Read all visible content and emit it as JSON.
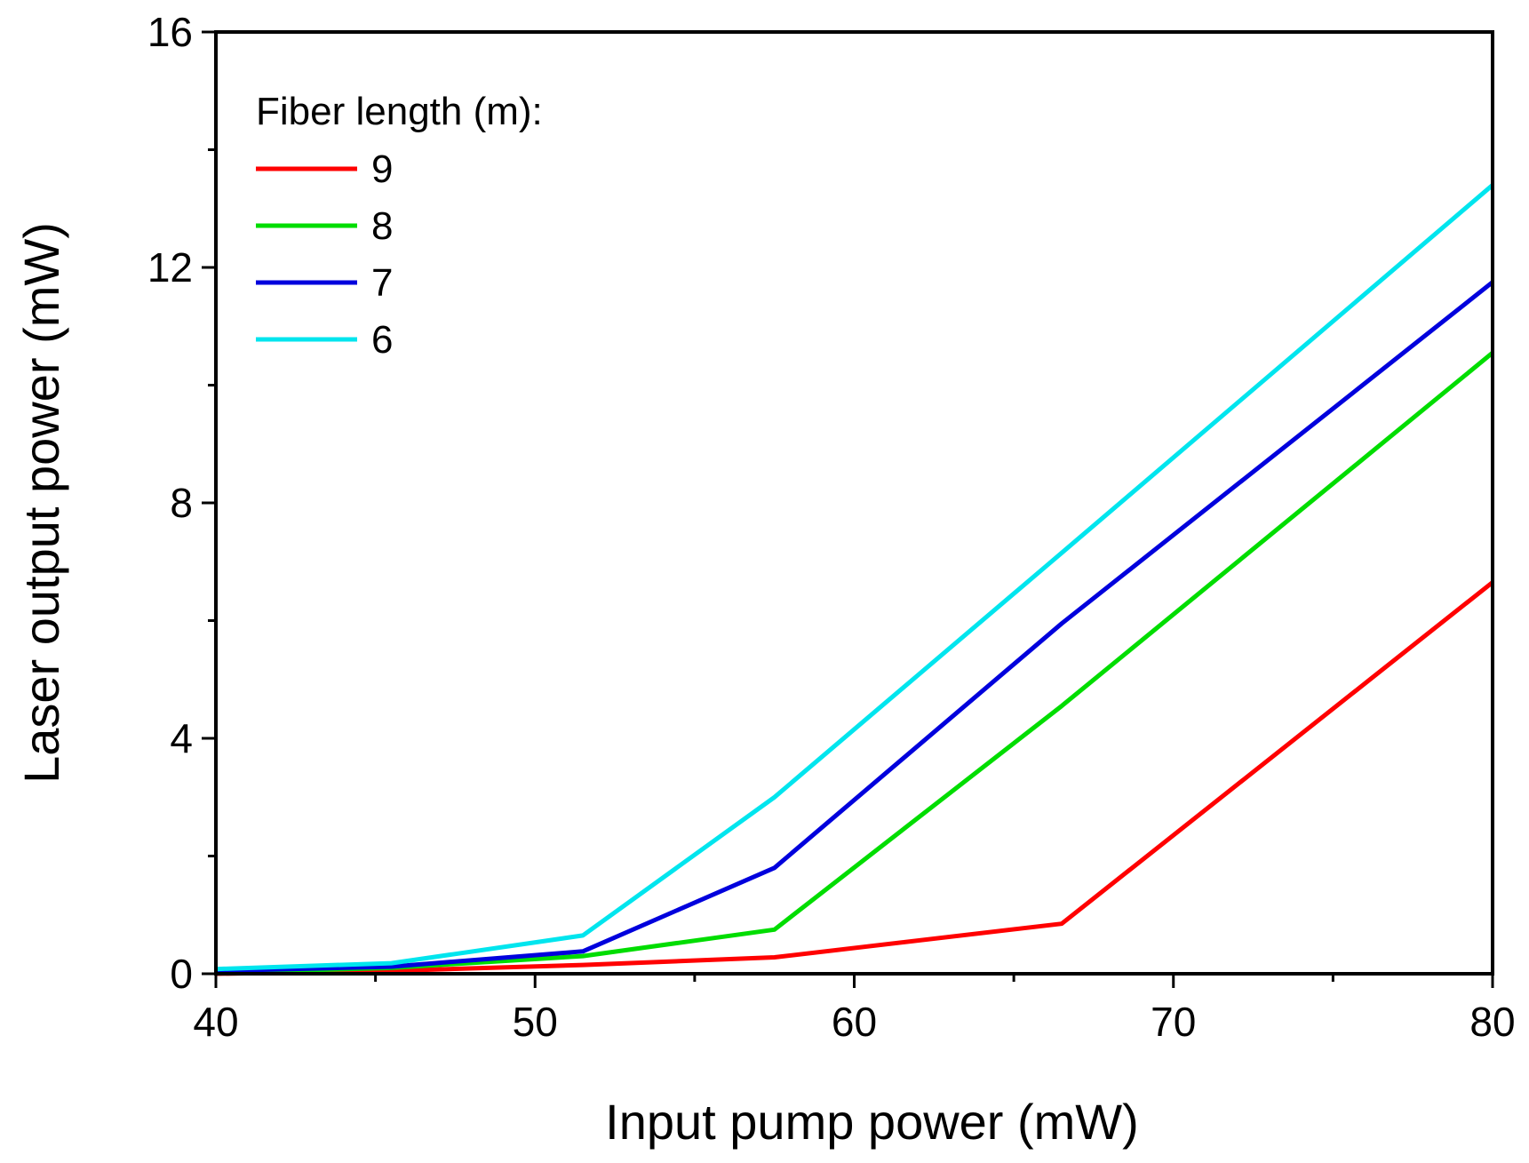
{
  "chart_data": {
    "type": "line",
    "xlabel": "Input pump power (mW)",
    "ylabel": "Laser output power (mW)",
    "xlim": [
      40,
      80
    ],
    "ylim": [
      0,
      16
    ],
    "xticks": [
      40,
      50,
      60,
      70,
      80
    ],
    "yticks": [
      0,
      4,
      8,
      12,
      16
    ],
    "grid": false,
    "legend": {
      "title": "Fiber length (m):",
      "position": "top-left"
    },
    "series": [
      {
        "name": "9",
        "color": "#ff0000",
        "points": [
          [
            40,
            0.0
          ],
          [
            45.5,
            0.05
          ],
          [
            51.5,
            0.15
          ],
          [
            57.5,
            0.28
          ],
          [
            66.5,
            0.85
          ],
          [
            80,
            6.65
          ]
        ]
      },
      {
        "name": "8",
        "color": "#00dd00",
        "points": [
          [
            40,
            0.02
          ],
          [
            45.5,
            0.1
          ],
          [
            51.5,
            0.3
          ],
          [
            57.5,
            0.75
          ],
          [
            66.5,
            4.55
          ],
          [
            80,
            10.55
          ]
        ]
      },
      {
        "name": "7",
        "color": "#0000dd",
        "points": [
          [
            40,
            0.05
          ],
          [
            45.5,
            0.12
          ],
          [
            51.5,
            0.38
          ],
          [
            57.5,
            1.8
          ],
          [
            66.5,
            5.95
          ],
          [
            80,
            11.75
          ]
        ]
      },
      {
        "name": "6",
        "color": "#00e5ee",
        "points": [
          [
            40,
            0.08
          ],
          [
            45.5,
            0.18
          ],
          [
            51.5,
            0.65
          ],
          [
            57.5,
            3.0
          ],
          [
            66.5,
            7.15
          ],
          [
            80,
            13.4
          ]
        ]
      }
    ]
  }
}
